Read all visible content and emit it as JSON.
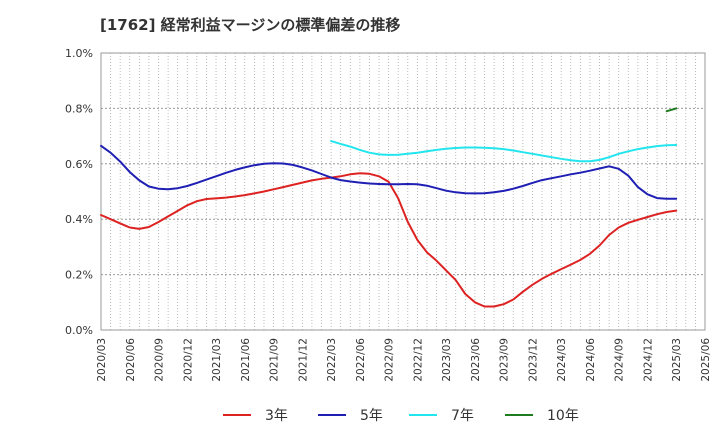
{
  "chart_data": {
    "type": "line",
    "title": "[1762]  経常利益マージンの標準偏差の推移",
    "xlabel": "",
    "ylabel": "",
    "ylim": [
      0,
      1.0
    ],
    "y_ticks": [
      "0.0%",
      "0.2%",
      "0.4%",
      "0.6%",
      "0.8%",
      "1.0%"
    ],
    "x_ticks": [
      "2020/03",
      "2020/06",
      "2020/09",
      "2020/12",
      "2021/03",
      "2021/06",
      "2021/09",
      "2021/12",
      "2022/03",
      "2022/06",
      "2022/09",
      "2022/12",
      "2023/03",
      "2023/06",
      "2023/09",
      "2023/12",
      "2024/03",
      "2024/06",
      "2024/09",
      "2024/12",
      "2025/03",
      "2025/06"
    ],
    "grid": true,
    "legend_position": "bottom",
    "x": [
      "2020/03",
      "2020/04",
      "2020/05",
      "2020/06",
      "2020/07",
      "2020/08",
      "2020/09",
      "2020/10",
      "2020/11",
      "2020/12",
      "2021/01",
      "2021/02",
      "2021/03",
      "2021/04",
      "2021/05",
      "2021/06",
      "2021/07",
      "2021/08",
      "2021/09",
      "2021/10",
      "2021/11",
      "2021/12",
      "2022/01",
      "2022/02",
      "2022/03",
      "2022/04",
      "2022/05",
      "2022/06",
      "2022/07",
      "2022/08",
      "2022/09",
      "2022/10",
      "2022/11",
      "2022/12",
      "2023/01",
      "2023/02",
      "2023/03",
      "2023/04",
      "2023/05",
      "2023/06",
      "2023/07",
      "2023/08",
      "2023/09",
      "2023/10",
      "2023/11",
      "2023/12",
      "2024/01",
      "2024/02",
      "2024/03",
      "2024/04",
      "2024/05",
      "2024/06",
      "2024/07",
      "2024/08",
      "2024/09",
      "2024/10",
      "2024/11",
      "2024/12",
      "2025/01",
      "2025/02",
      "2025/03"
    ],
    "series": [
      {
        "name": "3年",
        "color": "#dd2222",
        "values": [
          0.415,
          0.4,
          0.385,
          0.37,
          0.365,
          0.372,
          0.39,
          0.41,
          0.43,
          0.45,
          0.465,
          0.473,
          0.475,
          0.478,
          0.482,
          0.487,
          0.493,
          0.5,
          0.508,
          0.516,
          0.524,
          0.532,
          0.54,
          0.546,
          0.55,
          0.555,
          0.562,
          0.566,
          0.564,
          0.555,
          0.535,
          0.475,
          0.39,
          0.325,
          0.28,
          0.25,
          0.215,
          0.18,
          0.13,
          0.1,
          0.085,
          0.085,
          0.093,
          0.11,
          0.138,
          0.163,
          0.185,
          0.203,
          0.22,
          0.236,
          0.253,
          0.275,
          0.305,
          0.343,
          0.37,
          0.387,
          0.398,
          0.408,
          0.418,
          0.426,
          0.431
        ]
      },
      {
        "name": "5年",
        "color": "#1f1fb4",
        "values": [
          0.665,
          0.64,
          0.608,
          0.57,
          0.54,
          0.518,
          0.51,
          0.508,
          0.512,
          0.52,
          0.531,
          0.543,
          0.555,
          0.567,
          0.578,
          0.587,
          0.595,
          0.6,
          0.602,
          0.601,
          0.596,
          0.587,
          0.576,
          0.563,
          0.55,
          0.541,
          0.536,
          0.532,
          0.529,
          0.527,
          0.526,
          0.526,
          0.527,
          0.526,
          0.521,
          0.512,
          0.503,
          0.497,
          0.494,
          0.493,
          0.494,
          0.497,
          0.502,
          0.51,
          0.52,
          0.531,
          0.541,
          0.548,
          0.555,
          0.562,
          0.568,
          0.575,
          0.583,
          0.591,
          0.582,
          0.557,
          0.516,
          0.49,
          0.476,
          0.474,
          0.474
        ]
      },
      {
        "name": "7年",
        "color": "#22e5ee",
        "values": [
          null,
          null,
          null,
          null,
          null,
          null,
          null,
          null,
          null,
          null,
          null,
          null,
          null,
          null,
          null,
          null,
          null,
          null,
          null,
          null,
          null,
          null,
          null,
          null,
          0.682,
          0.672,
          0.662,
          0.65,
          0.64,
          0.634,
          0.632,
          0.633,
          0.636,
          0.64,
          0.645,
          0.65,
          0.654,
          0.657,
          0.659,
          0.659,
          0.658,
          0.656,
          0.653,
          0.648,
          0.642,
          0.636,
          0.63,
          0.624,
          0.618,
          0.613,
          0.609,
          0.609,
          0.614,
          0.624,
          0.636,
          0.645,
          0.653,
          0.659,
          0.664,
          0.667,
          0.668
        ]
      },
      {
        "name": "10年",
        "color": "#1e7b1e",
        "values": [
          null,
          null,
          null,
          null,
          null,
          null,
          null,
          null,
          null,
          null,
          null,
          null,
          null,
          null,
          null,
          null,
          null,
          null,
          null,
          null,
          null,
          null,
          null,
          null,
          null,
          null,
          null,
          null,
          null,
          null,
          null,
          null,
          null,
          null,
          null,
          null,
          null,
          null,
          null,
          null,
          null,
          null,
          null,
          null,
          null,
          null,
          null,
          null,
          null,
          null,
          null,
          null,
          null,
          null,
          null,
          null,
          null,
          null,
          null,
          0.79,
          0.8
        ]
      }
    ]
  }
}
